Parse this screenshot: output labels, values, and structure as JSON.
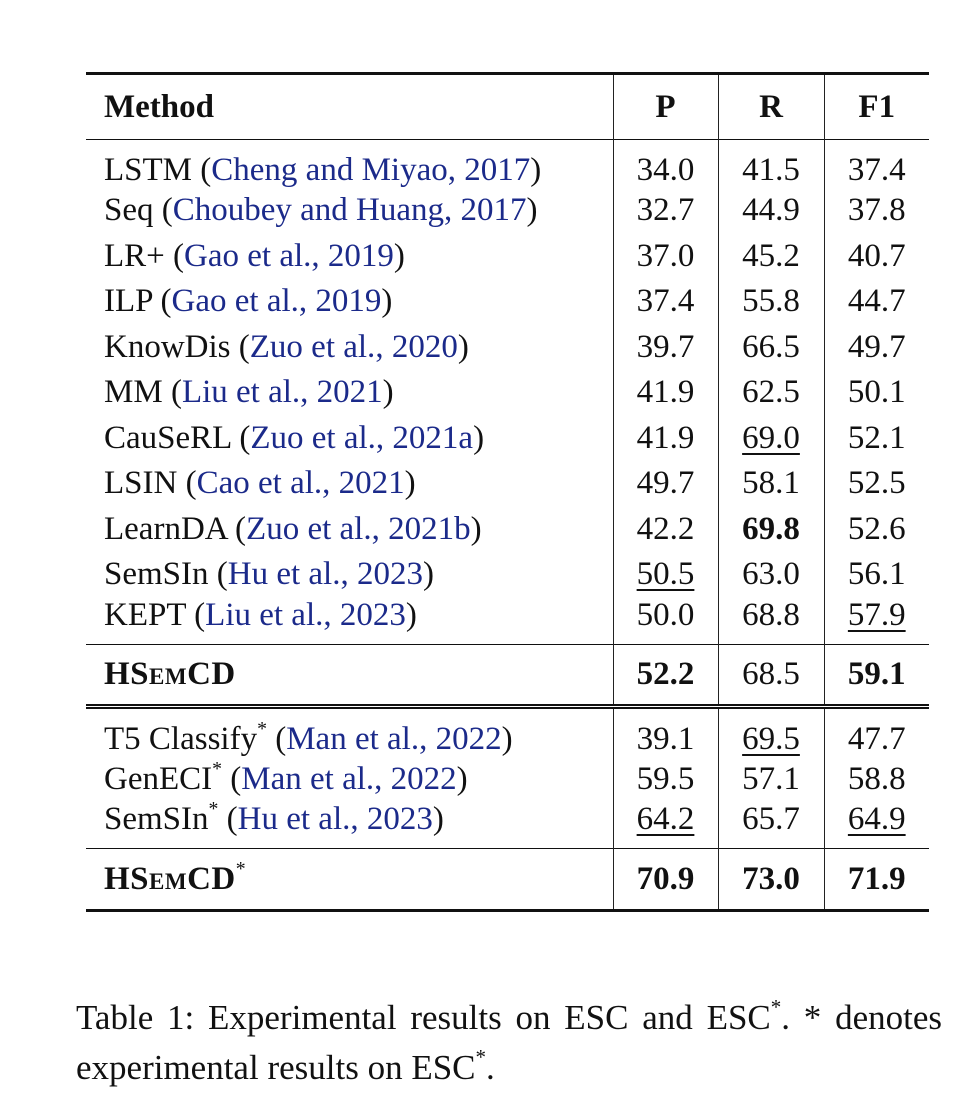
{
  "table": {
    "headers": [
      "Method",
      "P",
      "R",
      "F1"
    ],
    "groups": [
      {
        "rows": [
          {
            "method": "LSTM",
            "cite_authors": "Cheng and Miyao",
            "cite_year": "2017",
            "p": "34.0",
            "r": "41.5",
            "f1": "37.4"
          },
          {
            "method": "Seq",
            "cite_authors": "Choubey and Huang",
            "cite_year": "2017",
            "p": "32.7",
            "r": "44.9",
            "f1": "37.8"
          },
          {
            "method": "LR+",
            "cite_authors": "Gao et al.",
            "cite_year": "2019",
            "p": "37.0",
            "r": "45.2",
            "f1": "40.7"
          },
          {
            "method": "ILP",
            "cite_authors": "Gao et al.",
            "cite_year": "2019",
            "p": "37.4",
            "r": "55.8",
            "f1": "44.7"
          },
          {
            "method": "KnowDis",
            "cite_authors": "Zuo et al.",
            "cite_year": "2020",
            "p": "39.7",
            "r": "66.5",
            "f1": "49.7"
          },
          {
            "method": "MM",
            "cite_authors": "Liu et al.",
            "cite_year": "2021",
            "p": "41.9",
            "r": "62.5",
            "f1": "50.1"
          },
          {
            "method": "CauSeRL",
            "cite_authors": "Zuo et al.",
            "cite_year": "2021a",
            "p": "41.9",
            "r": "69.0",
            "f1": "52.1"
          },
          {
            "method": "LSIN",
            "cite_authors": "Cao et al.",
            "cite_year": "2021",
            "p": "49.7",
            "r": "58.1",
            "f1": "52.5"
          },
          {
            "method": "LearnDA",
            "cite_authors": "Zuo et al.",
            "cite_year": "2021b",
            "p": "42.2",
            "r": "69.8",
            "f1": "52.6"
          },
          {
            "method": "SemSIn",
            "cite_authors": "Hu et al.",
            "cite_year": "2023",
            "p": "50.5",
            "r": "63.0",
            "f1": "56.1"
          },
          {
            "method": "KEPT",
            "cite_authors": "Liu et al.",
            "cite_year": "2023",
            "p": "50.0",
            "r": "68.8",
            "f1": "57.9"
          }
        ],
        "best": {
          "method": "HSemCD",
          "p": "52.2",
          "r": "68.5",
          "f1": "59.1"
        }
      },
      {
        "rows": [
          {
            "method": "T5 Classify",
            "star": "*",
            "cite_authors": "Man et al.",
            "cite_year": "2022",
            "p": "39.1",
            "r": "69.5",
            "f1": "47.7"
          },
          {
            "method": "GenECI",
            "star": "*",
            "cite_authors": "Man et al.",
            "cite_year": "2022",
            "p": "59.5",
            "r": "57.1",
            "f1": "58.8"
          },
          {
            "method": "SemSIn",
            "star": "*",
            "cite_authors": "Hu et al.",
            "cite_year": "2023",
            "p": "64.2",
            "r": "65.7",
            "f1": "64.9"
          }
        ],
        "best": {
          "method": "HSemCD",
          "star": "*",
          "p": "70.9",
          "r": "73.0",
          "f1": "71.9"
        }
      }
    ]
  },
  "caption": {
    "line1": "Table 1:  Experimental results on ESC and ESC",
    "line1_star": "*",
    "line1_end": ".  *",
    "line2": "denotes experimental results on ESC",
    "line2_star": "*",
    "line2_end": "."
  },
  "colors": {
    "citation": "#1b2a8a",
    "text": "#111111"
  }
}
